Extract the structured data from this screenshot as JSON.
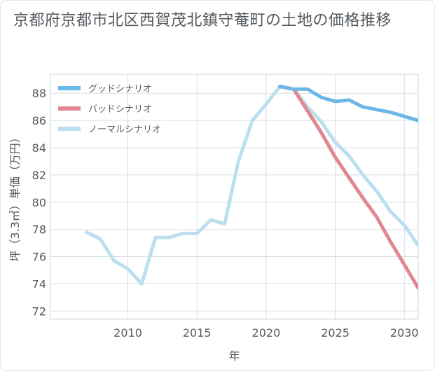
{
  "chart_data": {
    "type": "line",
    "title": "京都府京都市北区西賀茂北鎮守菴町の土地の価格推移",
    "xlabel": "年",
    "ylabel": "坪（3.3㎡）単価（万円）",
    "xlim": [
      2004.4,
      2031
    ],
    "ylim": [
      71.4,
      89.4
    ],
    "xticks": [
      2010,
      2015,
      2020,
      2025,
      2030
    ],
    "yticks": [
      72,
      74,
      76,
      78,
      80,
      82,
      84,
      86,
      88
    ],
    "grid": true,
    "legend_position": "top-left",
    "series": [
      {
        "name": "グッドシナリオ",
        "color": "#6cb6e8",
        "x": [
          2021,
          2022,
          2023,
          2024,
          2025,
          2026,
          2027,
          2028,
          2029,
          2030,
          2031
        ],
        "values": [
          88.5,
          88.3,
          88.3,
          87.7,
          87.4,
          87.5,
          87.0,
          86.8,
          86.6,
          86.3,
          86.0
        ]
      },
      {
        "name": "バッドシナリオ",
        "color": "#e0878f",
        "x": [
          2021,
          2022,
          2023,
          2024,
          2025,
          2026,
          2027,
          2028,
          2029,
          2030,
          2031
        ],
        "values": [
          88.5,
          88.3,
          86.7,
          85.1,
          83.3,
          81.8,
          80.3,
          78.9,
          77.1,
          75.4,
          73.7
        ]
      },
      {
        "name": "ノーマルシナリオ",
        "color": "#bcdff0",
        "x": [
          2007,
          2008,
          2009,
          2010,
          2011,
          2012,
          2013,
          2014,
          2015,
          2016,
          2017,
          2018,
          2019,
          2020,
          2021,
          2022,
          2023,
          2024,
          2025,
          2026,
          2027,
          2028,
          2029,
          2030,
          2031
        ],
        "values": [
          77.8,
          77.3,
          75.7,
          75.1,
          74.0,
          77.4,
          77.4,
          77.7,
          77.7,
          78.7,
          78.4,
          83.0,
          86.0,
          87.2,
          88.5,
          88.3,
          87.0,
          85.9,
          84.4,
          83.4,
          82.0,
          80.8,
          79.3,
          78.3,
          76.8
        ]
      }
    ]
  }
}
